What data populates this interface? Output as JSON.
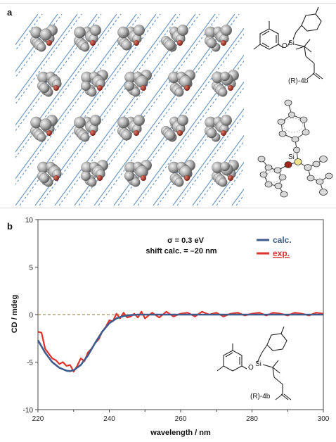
{
  "panels": {
    "a": {
      "letter": "a",
      "compound_label": "(R)-4b",
      "atom_label": "Si"
    },
    "b": {
      "letter": "b"
    }
  },
  "chart_data": {
    "type": "line",
    "title": "",
    "xlabel": "wavelength / nm",
    "ylabel": "CD / mdeg",
    "xlim": [
      220,
      300
    ],
    "ylim": [
      -10,
      10
    ],
    "xticks": [
      "220",
      "240",
      "260",
      "280",
      "300"
    ],
    "yticks": [
      "10",
      "5",
      "0",
      "-5",
      "-10"
    ],
    "grid": false,
    "zero_line": {
      "y": 0,
      "style": "dashed",
      "color": "#8a7a3a"
    },
    "annotations": [
      "σ = 0.3 eV",
      "shift calc. = –20 nm"
    ],
    "inset_label": "(R)-4b",
    "legend_position": "top-right",
    "series": [
      {
        "name": "calc.",
        "color": "#3f5b8c",
        "x": [
          220,
          222,
          224,
          226,
          228,
          229,
          230,
          232,
          234,
          236,
          238,
          240,
          242,
          244,
          246,
          248,
          250,
          255,
          260,
          270,
          280,
          290,
          300
        ],
        "y": [
          -2.7,
          -4.0,
          -5.0,
          -5.6,
          -5.9,
          -5.95,
          -5.85,
          -5.3,
          -4.3,
          -3.0,
          -1.8,
          -0.9,
          -0.4,
          -0.15,
          -0.05,
          0,
          0,
          0,
          0,
          0,
          0,
          0,
          0
        ]
      },
      {
        "name": "exp.",
        "color": "#e0322b",
        "x": [
          220,
          221,
          222,
          223,
          224,
          225,
          226,
          227,
          228,
          229,
          230,
          231,
          232,
          233,
          234,
          235,
          236,
          237,
          238,
          239,
          240,
          241,
          242,
          243,
          244,
          245,
          246,
          247,
          248,
          249,
          250,
          252,
          254,
          256,
          258,
          260,
          262,
          264,
          266,
          268,
          270,
          272,
          274,
          276,
          278,
          280,
          282,
          284,
          286,
          288,
          290,
          292,
          294,
          296,
          298,
          300
        ],
        "y": [
          -1.8,
          -1.9,
          -3.6,
          -4.1,
          -4.6,
          -4.8,
          -5.2,
          -5.0,
          -5.4,
          -5.3,
          -6.0,
          -5.4,
          -4.6,
          -4.9,
          -4.0,
          -3.6,
          -3.0,
          -2.6,
          -1.8,
          -1.3,
          -0.6,
          -0.7,
          0.1,
          -0.4,
          0.2,
          -0.3,
          -0.2,
          0.1,
          -0.3,
          0.3,
          -0.4,
          0.2,
          -0.3,
          0.3,
          -0.2,
          0.1,
          0.2,
          -0.2,
          0.3,
          0.0,
          0.2,
          -0.2,
          0.1,
          0.2,
          -0.1,
          0.1,
          0.2,
          -0.1,
          0.2,
          0.1,
          -0.1,
          0.2,
          0.1,
          -0.1,
          0.2,
          0.1
        ]
      }
    ]
  }
}
